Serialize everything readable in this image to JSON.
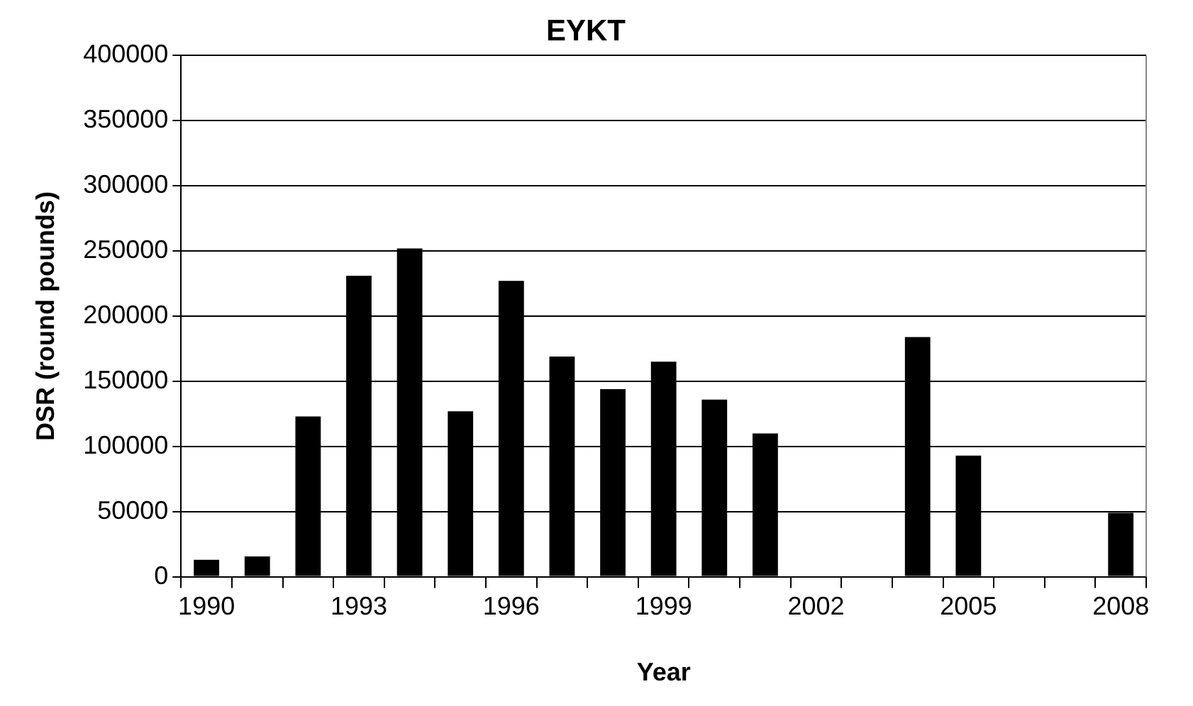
{
  "chart_data": {
    "type": "bar",
    "title": "EYKT",
    "xlabel": "Year",
    "ylabel": "DSR (round pounds)",
    "categories": [
      "1990",
      null,
      null,
      "1993",
      null,
      null,
      "1996",
      null,
      null,
      "1999",
      null,
      null,
      "2002",
      null,
      null,
      "2005",
      null,
      null,
      "2008"
    ],
    "values": [
      13000,
      15500,
      123000,
      231000,
      252000,
      127000,
      227000,
      169000,
      144000,
      165000,
      136000,
      110000,
      null,
      null,
      184000,
      93000,
      null,
      null,
      49000
    ],
    "color": "#000000",
    "ylim": [
      0,
      400000
    ],
    "yticks": [
      0,
      50000,
      100000,
      150000,
      200000,
      250000,
      300000,
      350000,
      400000
    ],
    "grid": "y",
    "legend": false
  }
}
